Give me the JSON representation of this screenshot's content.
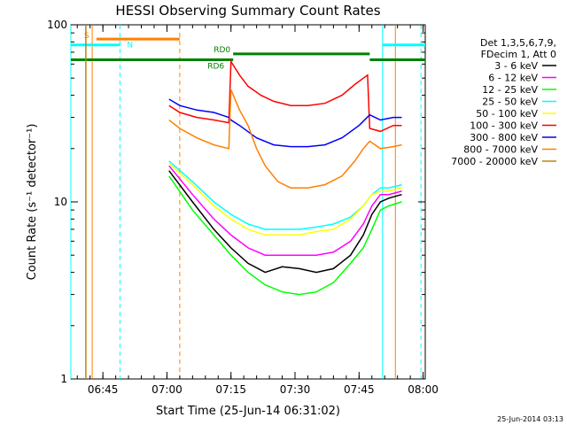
{
  "chart_data": {
    "type": "line",
    "title": "HESSI Observing Summary Count Rates",
    "xlabel": "Start Time (25-Jun-14 06:31:02)",
    "ylabel": "Count Rate (s⁻¹ detector⁻¹)",
    "yscale": "log",
    "ylim": [
      1,
      100
    ],
    "xlim_minutes": [
      6.5,
      89.5
    ],
    "x_ticks": [
      {
        "label": "06:45",
        "minute": 14
      },
      {
        "label": "07:00",
        "minute": 29
      },
      {
        "label": "07:15",
        "minute": 44
      },
      {
        "label": "07:30",
        "minute": 59
      },
      {
        "label": "07:45",
        "minute": 74
      },
      {
        "label": "08:00",
        "minute": 89
      }
    ],
    "y_ticks": [
      {
        "label": "1",
        "value": 1
      },
      {
        "label": "10",
        "value": 10
      },
      {
        "label": "100",
        "value": 100
      }
    ],
    "legend_header": [
      "Det 1,3,5,6,7,9,",
      "FDecim 1, Att 0"
    ],
    "legend_position": "right",
    "series": [
      {
        "name": "3 - 6 keV",
        "color": "#000000",
        "points": [
          [
            29.5,
            15
          ],
          [
            35,
            10
          ],
          [
            40,
            7
          ],
          [
            44,
            5.5
          ],
          [
            48,
            4.5
          ],
          [
            52,
            4.0
          ],
          [
            56,
            4.3
          ],
          [
            60,
            4.2
          ],
          [
            64,
            4.0
          ],
          [
            68,
            4.2
          ],
          [
            72,
            5
          ],
          [
            75,
            6.5
          ],
          [
            77,
            8.5
          ],
          [
            79,
            10
          ],
          [
            81,
            10.5
          ],
          [
            84,
            11
          ]
        ]
      },
      {
        "name": "6 - 12 keV",
        "color": "#ff00ff",
        "points": [
          [
            29.5,
            16
          ],
          [
            35,
            11
          ],
          [
            40,
            8
          ],
          [
            44,
            6.5
          ],
          [
            48,
            5.5
          ],
          [
            52,
            5.0
          ],
          [
            56,
            5.0
          ],
          [
            60,
            5.0
          ],
          [
            64,
            5.0
          ],
          [
            68,
            5.2
          ],
          [
            72,
            6
          ],
          [
            75,
            7.5
          ],
          [
            77,
            9.5
          ],
          [
            79,
            11
          ],
          [
            81,
            11
          ],
          [
            84,
            11.5
          ]
        ]
      },
      {
        "name": "12 - 25 keV",
        "color": "#00ff00",
        "points": [
          [
            29.5,
            14
          ],
          [
            35,
            9
          ],
          [
            40,
            6.5
          ],
          [
            44,
            5
          ],
          [
            48,
            4
          ],
          [
            52,
            3.4
          ],
          [
            56,
            3.1
          ],
          [
            60,
            3.0
          ],
          [
            64,
            3.1
          ],
          [
            68,
            3.5
          ],
          [
            72,
            4.5
          ],
          [
            75,
            5.5
          ],
          [
            77,
            7
          ],
          [
            79,
            9
          ],
          [
            81,
            9.5
          ],
          [
            84,
            10
          ]
        ]
      },
      {
        "name": "25 - 50 keV",
        "color": "#00ffff",
        "points": [
          [
            29.5,
            17
          ],
          [
            35,
            13
          ],
          [
            40,
            10
          ],
          [
            44,
            8.5
          ],
          [
            48,
            7.5
          ],
          [
            52,
            7.0
          ],
          [
            56,
            7.0
          ],
          [
            60,
            7.0
          ],
          [
            64,
            7.2
          ],
          [
            68,
            7.5
          ],
          [
            72,
            8.2
          ],
          [
            75,
            9.5
          ],
          [
            77,
            11
          ],
          [
            79,
            12
          ],
          [
            81,
            12
          ],
          [
            84,
            12.5
          ]
        ]
      },
      {
        "name": "50 - 100 keV",
        "color": "#ffff00",
        "points": [
          [
            29.5,
            16.5
          ],
          [
            35,
            12.5
          ],
          [
            40,
            9.5
          ],
          [
            44,
            8
          ],
          [
            48,
            7
          ],
          [
            52,
            6.5
          ],
          [
            56,
            6.5
          ],
          [
            60,
            6.5
          ],
          [
            64,
            6.8
          ],
          [
            68,
            7
          ],
          [
            72,
            8
          ],
          [
            75,
            9.5
          ],
          [
            77,
            11
          ],
          [
            79,
            11.5
          ],
          [
            81,
            11.5
          ],
          [
            84,
            12
          ]
        ]
      },
      {
        "name": "100 - 300 keV",
        "color": "#ff0000",
        "points": [
          [
            29.5,
            35
          ],
          [
            32,
            32
          ],
          [
            36,
            30
          ],
          [
            40,
            29
          ],
          [
            43.5,
            28
          ],
          [
            44,
            62
          ],
          [
            46,
            52
          ],
          [
            48,
            45
          ],
          [
            51,
            40
          ],
          [
            54,
            37
          ],
          [
            58,
            35
          ],
          [
            62,
            35
          ],
          [
            66,
            36
          ],
          [
            70,
            40
          ],
          [
            73,
            46
          ],
          [
            76,
            52
          ],
          [
            76.5,
            26
          ],
          [
            79,
            25
          ],
          [
            82,
            27
          ],
          [
            84,
            27
          ]
        ]
      },
      {
        "name": "300 - 800 keV",
        "color": "#0000ff",
        "points": [
          [
            29.5,
            38
          ],
          [
            32,
            35
          ],
          [
            36,
            33
          ],
          [
            40,
            32
          ],
          [
            43.5,
            30
          ],
          [
            44,
            29
          ],
          [
            46,
            27
          ],
          [
            50,
            23
          ],
          [
            54,
            21
          ],
          [
            58,
            20.5
          ],
          [
            62,
            20.5
          ],
          [
            66,
            21
          ],
          [
            70,
            23
          ],
          [
            74,
            27
          ],
          [
            76.5,
            31
          ],
          [
            79,
            29
          ],
          [
            82,
            30
          ],
          [
            84,
            30
          ]
        ]
      },
      {
        "name": "800 - 7000 keV",
        "color": "#ff8000",
        "points": [
          [
            29.5,
            29
          ],
          [
            32,
            26
          ],
          [
            36,
            23
          ],
          [
            40,
            21
          ],
          [
            43.5,
            20
          ],
          [
            44,
            43
          ],
          [
            46,
            33
          ],
          [
            48,
            27
          ],
          [
            50,
            20
          ],
          [
            52,
            16
          ],
          [
            55,
            13
          ],
          [
            58,
            12
          ],
          [
            62,
            12
          ],
          [
            66,
            12.5
          ],
          [
            70,
            14
          ],
          [
            73,
            17
          ],
          [
            75,
            20
          ],
          [
            76.5,
            22
          ],
          [
            79,
            20
          ],
          [
            82,
            20.5
          ],
          [
            84,
            21
          ]
        ]
      },
      {
        "name": "7000 - 20000 keV",
        "color": "#b8860b",
        "points": [
          [
            10,
            1
          ],
          [
            10,
            100
          ]
        ]
      }
    ],
    "mode_bars": [
      {
        "label": "S",
        "color": "#ff8000",
        "value": 83,
        "from": 12.5,
        "to": 32
      },
      {
        "label": "N",
        "color": "#00ffff",
        "value": 77,
        "from": 6.5,
        "to": 18,
        "value2": 77,
        "from2": 79.5,
        "to2": 89.5
      },
      {
        "label": "RD0",
        "color": "#008000",
        "value": 68.5,
        "from": 44.5,
        "to": 76.5
      },
      {
        "label": "RD6",
        "color": "#008000",
        "value": 63.5,
        "from": 6.5,
        "to": 44.5,
        "value2": 63.5,
        "from2": 76.5,
        "to2": 89.5
      }
    ],
    "vertical_markers": [
      {
        "minute": 6.5,
        "color": "#00ffff",
        "style": "solid"
      },
      {
        "minute": 11.5,
        "color": "#ff8000",
        "style": "solid"
      },
      {
        "minute": 18,
        "color": "#00ffff",
        "style": "dashed"
      },
      {
        "minute": 32,
        "color": "#ff8000",
        "style": "dashed"
      },
      {
        "minute": 79.5,
        "color": "#00ffff",
        "style": "solid"
      },
      {
        "minute": 82.5,
        "color": "#ff8000",
        "style": "solid"
      },
      {
        "minute": 88.5,
        "color": "#00ffff",
        "style": "dashed"
      }
    ]
  },
  "footer": {
    "timestamp": "25-Jun-2014 03:13"
  }
}
